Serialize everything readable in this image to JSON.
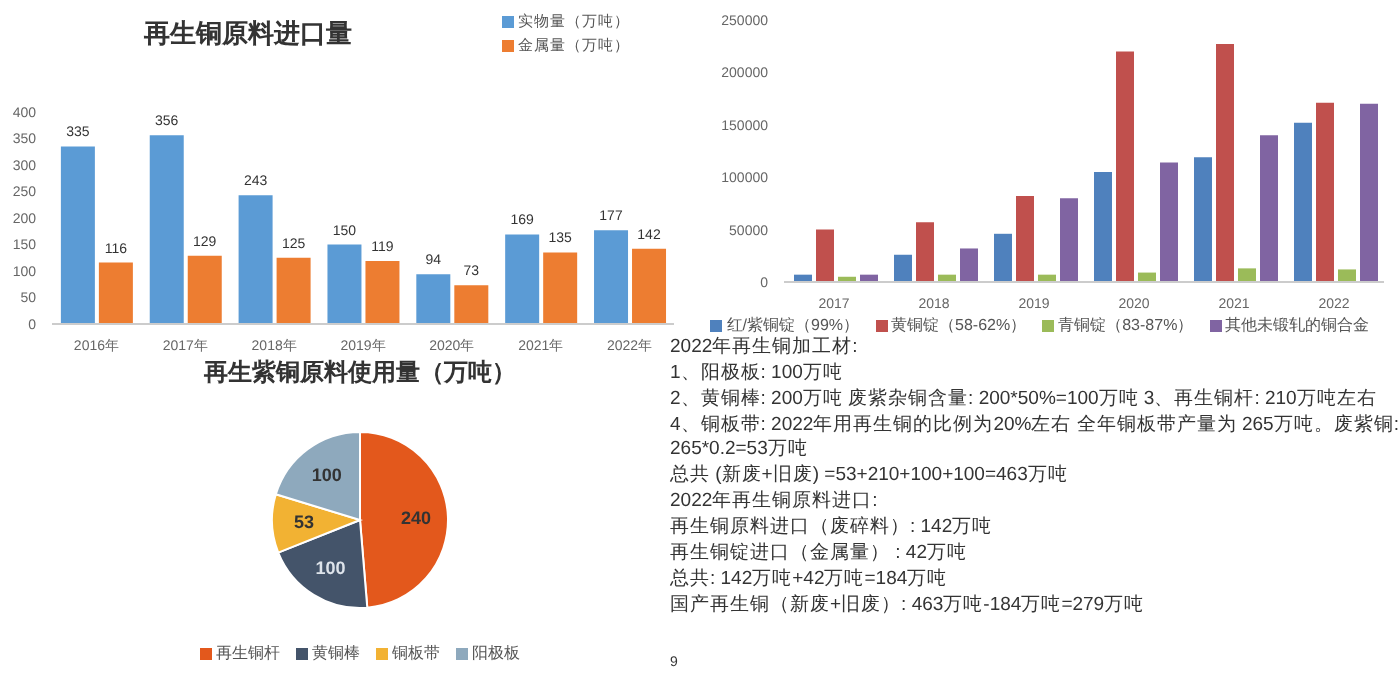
{
  "chart_data": [
    {
      "type": "bar",
      "title": "再生铜原料进口量",
      "categories": [
        "2016年",
        "2017年",
        "2018年",
        "2019年",
        "2020年",
        "2021年",
        "2022年"
      ],
      "series": [
        {
          "name": "实物量（万吨）",
          "color": "#5b9bd5",
          "values": [
            335,
            356,
            243,
            150,
            94,
            169,
            177
          ]
        },
        {
          "name": "金属量（万吨）",
          "color": "#ed7d31",
          "values": [
            116,
            129,
            125,
            119,
            73,
            135,
            142
          ]
        }
      ],
      "ylim": [
        0,
        400
      ],
      "yticks": [
        0,
        50,
        100,
        150,
        200,
        250,
        300,
        350,
        400
      ],
      "data_labels": true,
      "legend": "top right",
      "grid": false
    },
    {
      "type": "bar",
      "categories": [
        "2017",
        "2018",
        "2019",
        "2020",
        "2021",
        "2022"
      ],
      "series": [
        {
          "name": "红/紫铜锭（99%）",
          "color": "#4f81bd",
          "values": [
            7000,
            26000,
            46000,
            105000,
            119000,
            152000
          ]
        },
        {
          "name": "黄铜锭（58-62%）",
          "color": "#c0504d",
          "values": [
            50000,
            57000,
            82000,
            220000,
            227000,
            171000
          ]
        },
        {
          "name": "青铜锭（83-87%）",
          "color": "#9bbb59",
          "values": [
            5000,
            7000,
            7000,
            9000,
            13000,
            12000
          ]
        },
        {
          "name": "其他未锻轧的铜合金",
          "color": "#8064a2",
          "values": [
            7000,
            32000,
            80000,
            114000,
            140000,
            170000
          ]
        }
      ],
      "ylim": [
        0,
        250000
      ],
      "yticks": [
        0,
        50000,
        100000,
        150000,
        200000,
        250000
      ],
      "legend": "bottom",
      "grid": false
    },
    {
      "type": "pie",
      "title": "再生紫铜原料使用量（万吨）",
      "categories": [
        "再生铜杆",
        "黄铜棒",
        "铜板带",
        "阳极板"
      ],
      "values": [
        240,
        100,
        53,
        100
      ],
      "colors": [
        "#e3581c",
        "#44546a",
        "#f2b233",
        "#8ea9bd"
      ],
      "data_labels": true,
      "legend": "bottom"
    },
    {
      "type": "other",
      "annotations": [
        "2022年再生铜加工材:",
        "1、阳极板:    100万吨",
        "2、黄铜棒:    200万吨 废紫杂铜含量:    200*50%=100万吨            3、再生铜杆:    210万吨左右",
        "4、铜板带:    2022年用再生铜的比例为20%左右 全年铜板带产量为 265万吨。废紫铜: 265*0.2=53万吨",
        "总共    (新废+旧废)    =53+210+100+100=463万吨",
        "2022年再生铜原料进口:",
        "再生铜原料进口（废碎料）:  142万吨",
        "再生铜锭进口（金属量）  : 42万吨",
        "总共:      142万吨+42万吨=184万吨",
        "国产再生铜（新废+旧废）:  463万吨-184万吨=279万吨",
        "9"
      ]
    }
  ]
}
